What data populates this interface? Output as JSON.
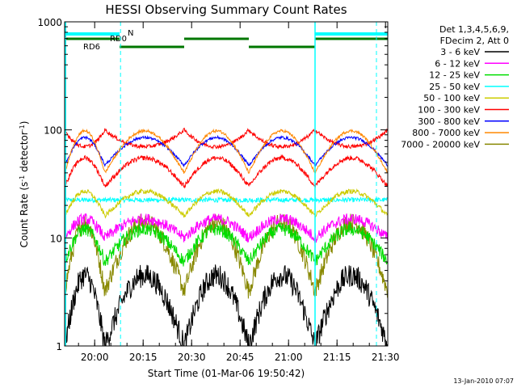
{
  "chart_data": {
    "type": "line",
    "title": "HESSI Observing Summary Count Rates",
    "xlabel": "Start Time (01-Mar-06 19:50:42)",
    "ylabel_main": "Count Rate (s",
    "ylabel_sup1": "-1",
    "ylabel_mid": " detector",
    "ylabel_sup2": "-1",
    "ylabel_end": ")",
    "yscale": "log",
    "ylim": [
      1,
      1000
    ],
    "xlim_minutes": [
      0,
      100
    ],
    "x_tick_labels": [
      "20:00",
      "20:15",
      "20:30",
      "20:45",
      "21:00",
      "21:15",
      "21:30"
    ],
    "x_tick_minutes": [
      9.3,
      24.3,
      39.3,
      54.3,
      69.3,
      84.3,
      99.3
    ],
    "y_tick_labels": [
      "1",
      "10",
      "100",
      "1000"
    ],
    "y_tick_values": [
      1,
      10,
      100,
      1000
    ],
    "legend": {
      "header": [
        "Det 1,3,4,5,6,9,",
        "FDecim 2, Att 0"
      ],
      "placement": "right",
      "entries": [
        {
          "label": "3 - 6 keV",
          "color": "#000000"
        },
        {
          "label": "6 - 12 keV",
          "color": "#ff00ff"
        },
        {
          "label": "12 - 25 keV",
          "color": "#00dd00"
        },
        {
          "label": "25 - 50 keV",
          "color": "#00ffff"
        },
        {
          "label": "50 - 100 keV",
          "color": "#cccc00"
        },
        {
          "label": "100 - 300 keV",
          "color": "#ff0000"
        },
        {
          "label": "300 - 800 keV",
          "color": "#0000ff"
        },
        {
          "label": "800 - 7000 keV",
          "color": "#ff8800"
        },
        {
          "label": "7000 - 20000 keV",
          "color": "#888800"
        }
      ]
    },
    "event_flags": [
      {
        "label": "N",
        "color": "#00ffff",
        "segments": [
          [
            0,
            17
          ],
          [
            77.5,
            100
          ]
        ]
      },
      {
        "label": "RD0",
        "color": "#007700",
        "segments": [
          [
            0,
            17
          ],
          [
            37,
            57
          ],
          [
            77.5,
            100
          ]
        ]
      },
      {
        "label": "RD6",
        "color": "#007700",
        "segments": [
          [
            17,
            37
          ],
          [
            57,
            77.5
          ]
        ]
      }
    ],
    "vertical_markers": {
      "solid_cyan_minutes": [
        0.3,
        77.5
      ],
      "dashed_cyan_minutes": [
        17.3,
        96.5
      ]
    },
    "orbit_segments": [
      [
        0,
        12.5
      ],
      [
        12.5,
        37
      ],
      [
        37,
        57
      ],
      [
        57,
        77.5
      ],
      [
        77.5,
        100
      ]
    ],
    "series": [
      {
        "name": "3 - 6 keV",
        "color": "#000000",
        "profile": {
          "base": 1.0,
          "peak": 4.5,
          "envelope": "arc",
          "noise": 0.25
        }
      },
      {
        "name": "6 - 12 keV",
        "color": "#ff00ff",
        "profile": {
          "base": 10,
          "peak": 15,
          "envelope": "arc",
          "noise": 0.12
        }
      },
      {
        "name": "12 - 25 keV",
        "color": "#00dd00",
        "profile": {
          "base": 6.0,
          "peak": 12,
          "envelope": "arc",
          "noise": 0.14
        }
      },
      {
        "name": "25 - 50 keV",
        "color": "#00ffff",
        "profile": {
          "base": 21,
          "peak": 24,
          "envelope": "step",
          "noise": 0.05
        }
      },
      {
        "name": "50 - 100 keV",
        "color": "#cccc00",
        "profile": {
          "base": 16,
          "peak": 27,
          "envelope": "arc",
          "noise": 0.05
        }
      },
      {
        "name": "100 - 300 keV",
        "color": "#ff0000",
        "profile": {
          "base": 70,
          "peak": 100,
          "envelope": "bowl",
          "noise": 0.04
        }
      },
      {
        "name": "300 - 800 keV",
        "color": "#0000ff",
        "profile": {
          "base": 47,
          "peak": 85,
          "envelope": "arc",
          "noise": 0.03
        }
      },
      {
        "name": "800 - 7000 keV",
        "color": "#ff8800",
        "profile": {
          "base": 40,
          "peak": 98,
          "envelope": "arc",
          "noise": 0.03
        }
      },
      {
        "name": "7000 - 20000 keV",
        "color": "#888800",
        "profile": {
          "base": 3.2,
          "peak": 14,
          "envelope": "arc",
          "noise": 0.2
        }
      }
    ],
    "secondary_red_band": {
      "base": 30,
      "peak": 55
    },
    "grid": false
  },
  "footer_date": "13-Jan-2010 07:07"
}
